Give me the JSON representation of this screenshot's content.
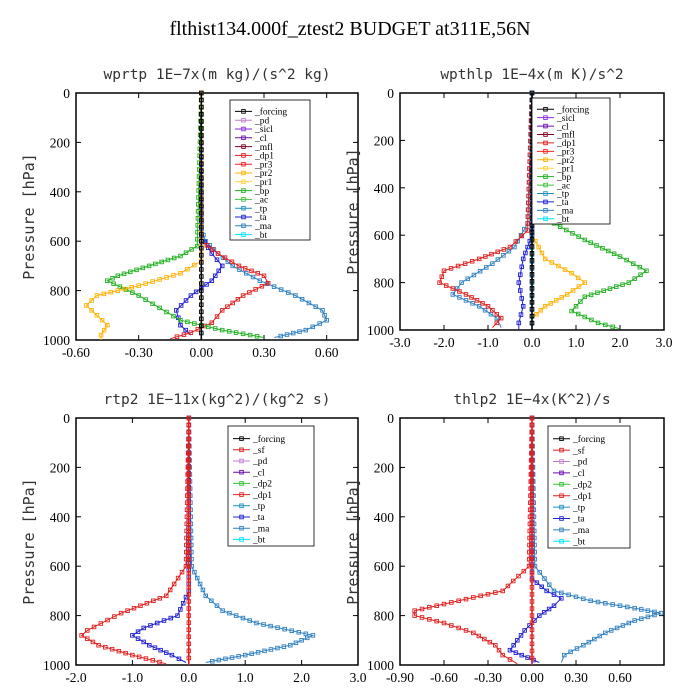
{
  "figure_title": "flthist134.000f_ztest2  BUDGET at311E,56N",
  "colors": {
    "forcing": "#000000",
    "pd": "#c080d0",
    "sicl": "#8a2be2",
    "cl": "#6a0dad",
    "mfl": "#800020",
    "dp1": "#e02020",
    "pr3": "#ff2020",
    "pr2": "#ffb000",
    "pr1": "#ffd040",
    "bp": "#20b020",
    "ac": "#40c040",
    "tp": "#1e90c0",
    "ta": "#2020d0",
    "ma": "#3080c0",
    "bt": "#00e0ff",
    "sf": "#e02020",
    "dp2": "#30c030"
  },
  "chart_data": [
    {
      "type": "line",
      "title": "wprtp   1E−7x(m kg)/(s^2 kg)",
      "ylabel": "Pressure [hPa]",
      "xlim": [
        -0.6,
        0.75
      ],
      "ylim": [
        1000,
        0
      ],
      "xticks": [
        "-0.60",
        "-0.30",
        "0.00",
        "0.30",
        "0.60"
      ],
      "xtick_values": [
        -0.6,
        -0.3,
        0.0,
        0.3,
        0.6
      ],
      "yticks": [
        "0",
        "200",
        "400",
        "600",
        "800",
        "1000"
      ],
      "ytick_values": [
        0,
        200,
        400,
        600,
        800,
        1000
      ],
      "legend_position": "top-right",
      "legend": [
        "_forcing",
        "_pd",
        "_sicl",
        "_cl",
        "_mfl",
        "_dp1",
        "_pr3",
        "_pr2",
        "_pr1",
        "_bp",
        "_ac",
        "_tp",
        "_ta",
        "_ma",
        "_bt"
      ],
      "legend_colors": [
        "forcing",
        "pd",
        "sicl",
        "cl",
        "mfl",
        "dp1",
        "pr3",
        "pr2",
        "pr1",
        "bp",
        "ac",
        "tp",
        "ta",
        "ma",
        "bt"
      ],
      "series": [
        {
          "key": "ma",
          "points": [
            [
              0,
              0
            ],
            [
              0,
              550
            ],
            [
              0.02,
              600
            ],
            [
              0.08,
              650
            ],
            [
              0.15,
              700
            ],
            [
              0.28,
              760
            ],
            [
              0.45,
              820
            ],
            [
              0.58,
              880
            ],
            [
              0.6,
              920
            ],
            [
              0.5,
              960
            ],
            [
              0.35,
              990
            ]
          ]
        },
        {
          "key": "ta",
          "points": [
            [
              0,
              0
            ],
            [
              0,
              580
            ],
            [
              0.05,
              650
            ],
            [
              0.1,
              700
            ],
            [
              0.05,
              760
            ],
            [
              -0.05,
              820
            ],
            [
              -0.12,
              880
            ],
            [
              -0.1,
              940
            ],
            [
              -0.05,
              980
            ]
          ]
        },
        {
          "key": "dp1",
          "points": [
            [
              0,
              0
            ],
            [
              0,
              600
            ],
            [
              0.08,
              650
            ],
            [
              0.18,
              700
            ],
            [
              0.3,
              740
            ],
            [
              0.32,
              770
            ],
            [
              0.2,
              820
            ],
            [
              0.1,
              880
            ],
            [
              0.05,
              930
            ],
            [
              -0.05,
              970
            ],
            [
              -0.15,
              995
            ]
          ]
        },
        {
          "key": "bp",
          "points": [
            [
              0,
              0
            ],
            [
              -0.02,
              620
            ],
            [
              -0.1,
              660
            ],
            [
              -0.25,
              700
            ],
            [
              -0.4,
              740
            ],
            [
              -0.45,
              760
            ],
            [
              -0.3,
              820
            ],
            [
              -0.2,
              870
            ],
            [
              -0.1,
              920
            ],
            [
              0.1,
              960
            ],
            [
              0.3,
              990
            ]
          ]
        },
        {
          "key": "pr2",
          "points": [
            [
              0,
              0
            ],
            [
              0,
              680
            ],
            [
              -0.1,
              730
            ],
            [
              -0.3,
              780
            ],
            [
              -0.5,
              820
            ],
            [
              -0.55,
              860
            ],
            [
              -0.5,
              900
            ],
            [
              -0.45,
              940
            ],
            [
              -0.48,
              980
            ],
            [
              -0.48,
              1000
            ]
          ]
        },
        {
          "key": "forcing",
          "points": [
            [
              0,
              0
            ],
            [
              0,
              1000
            ]
          ]
        }
      ]
    },
    {
      "type": "line",
      "title": "wpthlp   1E−4x(m K)/s^2",
      "ylabel": "Pressure [hPa]",
      "xlim": [
        -3.0,
        3.0
      ],
      "ylim": [
        1000,
        0
      ],
      "xticks": [
        "-3.0",
        "-2.0",
        "-1.0",
        "0.0",
        "1.0",
        "2.0",
        "3.0"
      ],
      "xtick_values": [
        -3,
        -2,
        -1,
        0,
        1,
        2,
        3
      ],
      "yticks": [
        "0",
        "200",
        "400",
        "600",
        "800",
        "1000"
      ],
      "ytick_values": [
        0,
        200,
        400,
        600,
        800,
        1000
      ],
      "legend_position": "top-right",
      "legend": [
        "_forcing",
        "_sicl",
        "_cl",
        "_mfl",
        "_dp1",
        "_pr3",
        "_pr2",
        "_pr1",
        "_bp",
        "_ac",
        "_tp",
        "_ta",
        "_ma",
        "_bt"
      ],
      "legend_colors": [
        "forcing",
        "sicl",
        "cl",
        "mfl",
        "dp1",
        "pr3",
        "pr2",
        "pr1",
        "bp",
        "ac",
        "tp",
        "ta",
        "ma",
        "bt"
      ],
      "series": [
        {
          "key": "bp",
          "points": [
            [
              0,
              0
            ],
            [
              0.1,
              450
            ],
            [
              0.5,
              550
            ],
            [
              1.2,
              620
            ],
            [
              2.0,
              690
            ],
            [
              2.6,
              750
            ],
            [
              2.2,
              800
            ],
            [
              1.2,
              860
            ],
            [
              0.9,
              920
            ],
            [
              1.5,
              970
            ],
            [
              2.0,
              995
            ]
          ]
        },
        {
          "key": "pr2",
          "points": [
            [
              0,
              0
            ],
            [
              0,
              600
            ],
            [
              0.3,
              700
            ],
            [
              0.9,
              760
            ],
            [
              1.2,
              800
            ],
            [
              0.8,
              850
            ],
            [
              0.3,
              900
            ],
            [
              0,
              950
            ]
          ]
        },
        {
          "key": "ma",
          "points": [
            [
              0,
              0
            ],
            [
              -0.1,
              550
            ],
            [
              -0.4,
              650
            ],
            [
              -0.9,
              720
            ],
            [
              -1.6,
              800
            ],
            [
              -1.8,
              850
            ],
            [
              -1.2,
              900
            ],
            [
              -0.8,
              950
            ],
            [
              -0.7,
              990
            ]
          ]
        },
        {
          "key": "dp1",
          "points": [
            [
              0,
              0
            ],
            [
              -0.1,
              580
            ],
            [
              -0.5,
              650
            ],
            [
              -1.2,
              700
            ],
            [
              -2.0,
              750
            ],
            [
              -2.1,
              800
            ],
            [
              -1.5,
              850
            ],
            [
              -1.0,
              900
            ],
            [
              -0.7,
              950
            ],
            [
              -0.9,
              990
            ]
          ]
        },
        {
          "key": "ta",
          "points": [
            [
              0,
              0
            ],
            [
              0,
              600
            ],
            [
              -0.2,
              700
            ],
            [
              -0.3,
              800
            ],
            [
              -0.2,
              900
            ],
            [
              -0.3,
              970
            ],
            [
              -0.3,
              1000
            ]
          ]
        },
        {
          "key": "tp",
          "points": [
            [
              0,
              0
            ],
            [
              0,
              800
            ],
            [
              0,
              1000
            ]
          ]
        },
        {
          "key": "forcing",
          "points": [
            [
              0,
              0
            ],
            [
              0,
              1000
            ]
          ]
        }
      ]
    },
    {
      "type": "line",
      "title": "rtp2   1E−11x(kg^2)/(kg^2 s)",
      "ylabel": "Pressure [hPa]",
      "xlim": [
        -2.0,
        3.0
      ],
      "ylim": [
        1000,
        0
      ],
      "xticks": [
        "-2.0",
        "-1.0",
        "0.0",
        "1.0",
        "2.0",
        "3.0"
      ],
      "xtick_values": [
        -2,
        -1,
        0,
        1,
        2,
        3
      ],
      "yticks": [
        "0",
        "200",
        "400",
        "600",
        "800",
        "1000"
      ],
      "ytick_values": [
        0,
        200,
        400,
        600,
        800,
        1000
      ],
      "legend_position": "top-right",
      "legend": [
        "_forcing",
        "_sf",
        "_pd",
        "_cl",
        "_dp2",
        "_dp1",
        "_tp",
        "_ta",
        "_ma",
        "_bt"
      ],
      "legend_colors": [
        "forcing",
        "sf",
        "pd",
        "cl",
        "dp2",
        "dp1",
        "tp",
        "ta",
        "ma",
        "bt"
      ],
      "series": [
        {
          "key": "ma",
          "points": [
            [
              0,
              0
            ],
            [
              0.05,
              600
            ],
            [
              0.3,
              720
            ],
            [
              0.6,
              780
            ],
            [
              1.2,
              830
            ],
            [
              2.2,
              880
            ],
            [
              1.8,
              920
            ],
            [
              1.0,
              960
            ],
            [
              0.3,
              990
            ]
          ]
        },
        {
          "key": "ta",
          "points": [
            [
              0,
              0
            ],
            [
              0,
              700
            ],
            [
              -0.2,
              800
            ],
            [
              -0.8,
              850
            ],
            [
              -1.0,
              880
            ],
            [
              -0.7,
              920
            ],
            [
              -0.3,
              960
            ],
            [
              -0.05,
              990
            ]
          ]
        },
        {
          "key": "dp1",
          "points": [
            [
              0,
              0
            ],
            [
              -0.05,
              600
            ],
            [
              -0.4,
              720
            ],
            [
              -1.2,
              790
            ],
            [
              -1.8,
              860
            ],
            [
              -1.9,
              880
            ],
            [
              -1.6,
              920
            ],
            [
              -1.0,
              960
            ],
            [
              -0.4,
              995
            ]
          ]
        },
        {
          "key": "sf",
          "points": [
            [
              0,
              0
            ],
            [
              0,
              1000
            ]
          ]
        }
      ]
    },
    {
      "type": "line",
      "title": "thlp2   1E−4x(K^2)/s",
      "ylabel": "Pressure [hPa]",
      "xlim": [
        -0.9,
        0.9
      ],
      "ylim": [
        1000,
        0
      ],
      "xticks": [
        "-0.90",
        "-0.60",
        "-0.30",
        "0.00",
        "0.30",
        "0.60"
      ],
      "xtick_values": [
        -0.9,
        -0.6,
        -0.3,
        0.0,
        0.3,
        0.6
      ],
      "yticks": [
        "0",
        "200",
        "400",
        "600",
        "800",
        "1000"
      ],
      "ytick_values": [
        0,
        200,
        400,
        600,
        800,
        1000
      ],
      "legend_position": "top-right",
      "legend": [
        "_forcing",
        "_sf",
        "_pd",
        "_cl",
        "_dp2",
        "_dp1",
        "_tp",
        "_ta",
        "_ma",
        "_bt"
      ],
      "legend_colors": [
        "forcing",
        "sf",
        "pd",
        "cl",
        "dp2",
        "dp1",
        "tp",
        "ta",
        "ma",
        "bt"
      ],
      "series": [
        {
          "key": "ma",
          "points": [
            [
              0,
              0
            ],
            [
              0.02,
              600
            ],
            [
              0.15,
              700
            ],
            [
              0.4,
              740
            ],
            [
              0.7,
              770
            ],
            [
              0.88,
              790
            ],
            [
              0.7,
              820
            ],
            [
              0.5,
              870
            ],
            [
              0.35,
              920
            ],
            [
              0.22,
              960
            ],
            [
              0.2,
              990
            ]
          ]
        },
        {
          "key": "ta",
          "points": [
            [
              0,
              0
            ],
            [
              0,
              650
            ],
            [
              0.1,
              700
            ],
            [
              0.2,
              730
            ],
            [
              0.15,
              760
            ],
            [
              0.05,
              800
            ],
            [
              -0.05,
              860
            ],
            [
              -0.15,
              940
            ],
            [
              0.05,
              990
            ]
          ]
        },
        {
          "key": "dp1",
          "points": [
            [
              0,
              0
            ],
            [
              -0.02,
              600
            ],
            [
              -0.2,
              700
            ],
            [
              -0.5,
              740
            ],
            [
              -0.8,
              780
            ],
            [
              -0.8,
              800
            ],
            [
              -0.6,
              830
            ],
            [
              -0.4,
              870
            ],
            [
              -0.25,
              920
            ],
            [
              -0.2,
              960
            ],
            [
              -0.1,
              995
            ]
          ]
        },
        {
          "key": "sf",
          "points": [
            [
              0,
              0
            ],
            [
              0,
              1000
            ]
          ]
        }
      ]
    }
  ]
}
